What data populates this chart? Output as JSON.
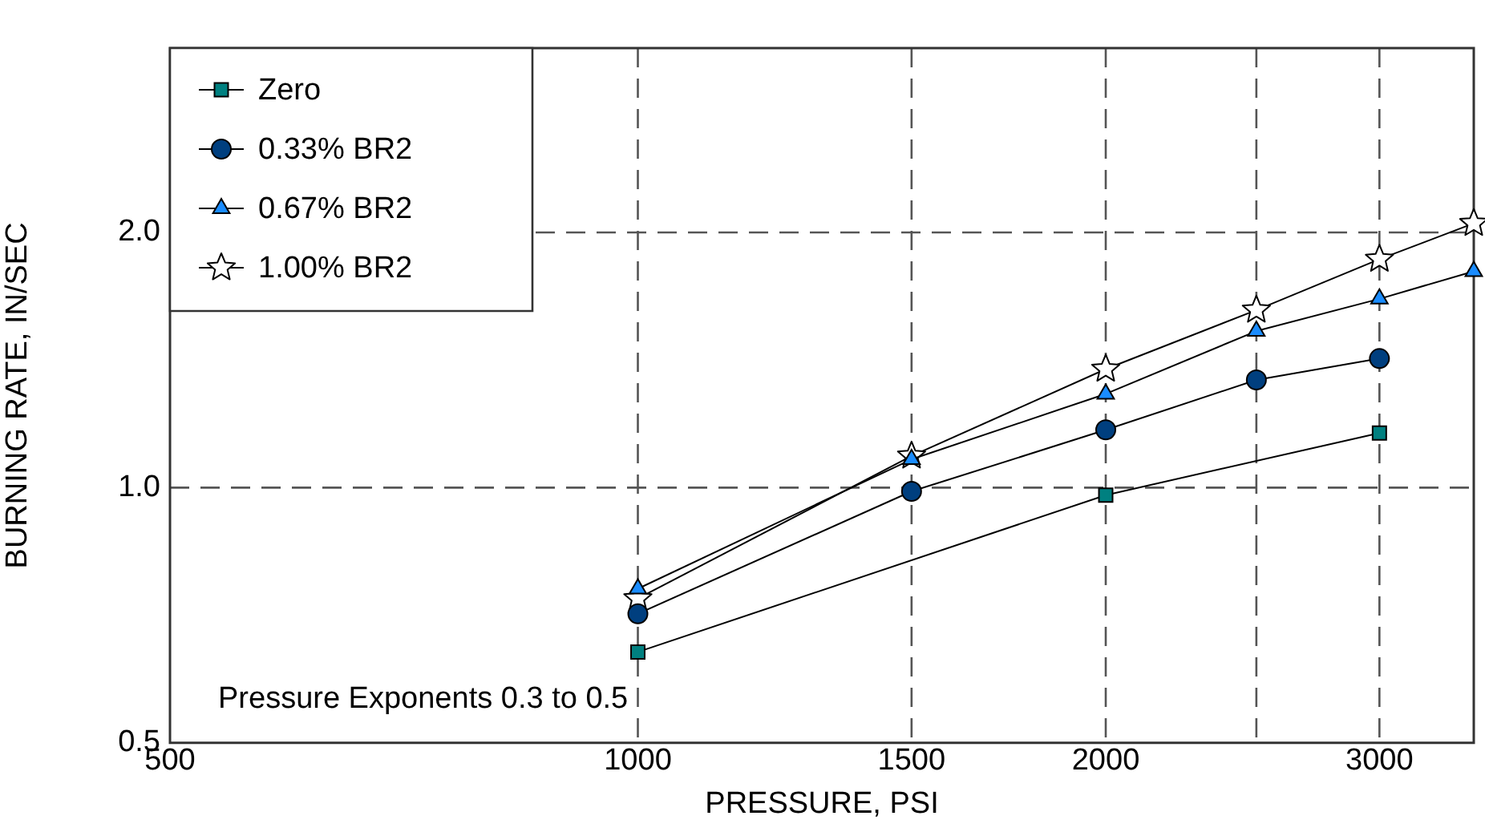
{
  "chart_data": {
    "type": "line",
    "xlabel": "PRESSURE, PSI",
    "ylabel": "BURNING RATE, IN/SEC",
    "log": "xy",
    "xlim": [
      500,
      3450
    ],
    "ylim": [
      0.5,
      3.3
    ],
    "xticks": [
      500,
      1000,
      1500,
      2000,
      {
        "value": 2500,
        "label": null
      },
      3000
    ],
    "yticks": [
      {
        "value": 0.5,
        "label": "0.5"
      },
      {
        "value": 1,
        "label": "1.0"
      },
      {
        "value": 2,
        "label": "2.0"
      }
    ],
    "grid": true,
    "line_style": "solid",
    "legend": "top left",
    "annotations": [
      "Pressure Exponents 0.3 to 0.5"
    ],
    "series": [
      {
        "name": "Zero",
        "color": "#008080",
        "marker": "square",
        "x": [
          1000,
          2000,
          3000
        ],
        "values": [
          0.64,
          0.98,
          1.16
        ]
      },
      {
        "name": "0.33% BR2",
        "color": "#003f7f",
        "marker": "circle",
        "x": [
          1000,
          1500,
          2000,
          2500,
          3000
        ],
        "values": [
          0.71,
          0.99,
          1.17,
          1.34,
          1.42
        ]
      },
      {
        "name": "0.67% BR2",
        "color": "#1a8cff",
        "marker": "triangle",
        "x": [
          1000,
          1500,
          2000,
          2500,
          3000,
          3450
        ],
        "values": [
          0.76,
          1.08,
          1.29,
          1.53,
          1.67,
          1.8
        ]
      },
      {
        "name": "1.00% BR2",
        "color": "#ffffff",
        "marker": "star",
        "x": [
          1000,
          1500,
          2000,
          2500,
          3000,
          3450
        ],
        "values": [
          0.74,
          1.09,
          1.38,
          1.62,
          1.86,
          2.05
        ]
      }
    ]
  }
}
